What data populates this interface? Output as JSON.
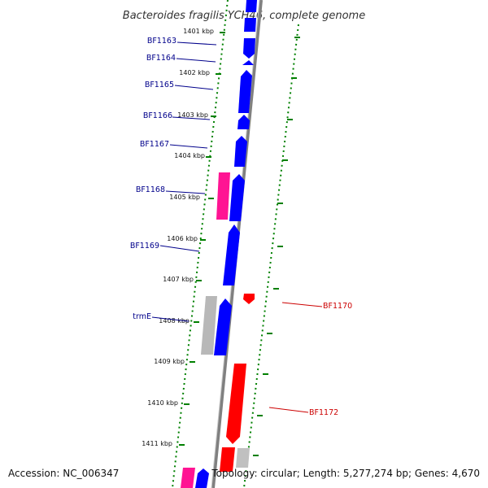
{
  "title": "Bacteroides fragilis YCH46, complete genome",
  "footer": {
    "accession": "Accession: NC_006347",
    "summary": "Topology: circular; Length: 5,277,274 bp; Genes: 4,670"
  },
  "colors": {
    "forward_gene": "#0000ff",
    "reverse_gene": "#ff0000",
    "pink_feature": "#ff1493",
    "gray_feature": "#b8b8b8",
    "backbone": "#808080",
    "ticks": "#008000",
    "left_label": "#00008b",
    "right_label": "#cc0000"
  },
  "kbp_labels": [
    "1401 kbp",
    "1402 kbp",
    "1403 kbp",
    "1404 kbp",
    "1405 kbp",
    "1406 kbp",
    "1407 kbp",
    "1408 kbp",
    "1409 kbp",
    "1410 kbp",
    "1411 kbp"
  ],
  "left_gene_labels": [
    "BF1163",
    "BF1164",
    "BF1165",
    "BF1166",
    "BF1167",
    "BF1168",
    "BF1169",
    "trmE"
  ],
  "right_gene_labels": [
    "BF1170",
    "BF1172"
  ]
}
